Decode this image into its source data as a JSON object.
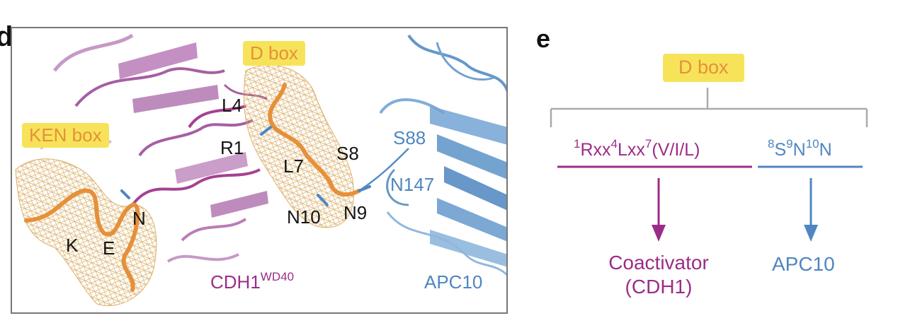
{
  "panel_d": {
    "letter": "d",
    "tags": {
      "dbox": "D box",
      "ken": "KEN box"
    },
    "residues": {
      "L4": "L4",
      "R1": "R1",
      "L7": "L7",
      "S8": "S8",
      "N10": "N10",
      "N9": "N9",
      "K": "K",
      "E": "E",
      "N": "N",
      "S88": "S88",
      "N147": "N147"
    },
    "labels": {
      "cdh1_main": "CDH1",
      "cdh1_sup": "WD40",
      "apc10": "APC10"
    },
    "colors": {
      "cdh1": "#9c2d87",
      "apc10": "#4f86c0",
      "peptide": "#e6903a",
      "tag_bg": "#f7e35a"
    }
  },
  "panel_e": {
    "letter": "e",
    "dbox_tag": "D box",
    "motif_purple": {
      "n1": "1",
      "t1": "Rxx",
      "n2": "4",
      "t2": "Lxx",
      "n3": "7",
      "t3": "(V/I/L)"
    },
    "motif_blue": {
      "n1": "8",
      "t1": "S",
      "n2": "9",
      "t2": "N",
      "n3": "10",
      "t3": "N"
    },
    "target_purple": {
      "line1": "Coactivator",
      "line2": "(CDH1)"
    },
    "target_blue": "APC10"
  }
}
